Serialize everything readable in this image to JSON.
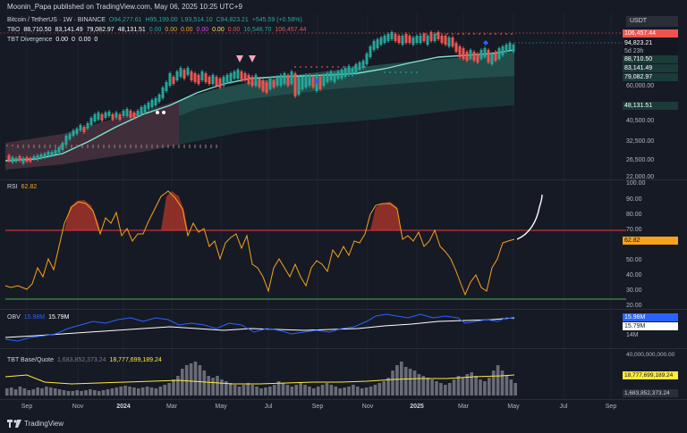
{
  "header": {
    "published_by": "Moonin_Papa published on TradingView.com, May 06, 2025 10:25 UTC+9"
  },
  "main": {
    "symbol": "Bitcoin / TetherUS · 1W · BINANCE",
    "ohlc": {
      "o": "O94,277.61",
      "h": "H95,199.00",
      "l": "L93,514.10",
      "c": "C94,823.21",
      "chg": "+545.59 (+0.58%)"
    },
    "tbo": {
      "label": "TBO",
      "values": [
        "88,710.50",
        "83,141.49",
        "79,082.97",
        "48,131.51",
        "0.00",
        "0.00",
        "0.00",
        "0.00",
        "0.00",
        "0.00",
        "16,548.70",
        "106,457.44"
      ]
    },
    "tbt_div": {
      "label": "TBT Divergence",
      "values": [
        "0.00",
        "0",
        "0.00",
        "0"
      ]
    },
    "currency": "USDT",
    "price_tags": [
      {
        "text": "106,457.44",
        "bg": "#ef5350",
        "fg": "#ffffff"
      },
      {
        "text": "94,823.21",
        "bg": "#131722",
        "fg": "#ffffff"
      },
      {
        "text": "5d 23h",
        "bg": "#131722",
        "fg": "#b2b5be"
      },
      {
        "text": "88,710.50",
        "bg": "#1b3b39",
        "fg": "#ffffff"
      },
      {
        "text": "83,141.49",
        "bg": "#1b3b39",
        "fg": "#ffffff"
      },
      {
        "text": "79,082.97",
        "bg": "#1b3b39",
        "fg": "#ffffff"
      },
      {
        "text": "48,131.51",
        "bg": "#1b3b39",
        "fg": "#ffffff"
      }
    ],
    "price_axis": [
      "60,000.00",
      "40,500.00",
      "32,500.00",
      "26,500.00",
      "22,000.00"
    ]
  },
  "rsi": {
    "label": "RSI",
    "value": "62.82",
    "axis": [
      "100.00",
      "90.00",
      "80.00",
      "70.00",
      "50.00",
      "40.00",
      "30.00",
      "20.00"
    ],
    "color": "#f7a21b",
    "overbought_color": "#f23645",
    "oversold_color": "#4caf50"
  },
  "obv": {
    "label": "OBV",
    "v1": "15.98M",
    "v2": "15.79M",
    "axis": [
      "14M"
    ]
  },
  "tbt_base_quote": {
    "label": "TBT Base/Quote",
    "v1": "1,683,852,373.24",
    "v2": "18,777,699,189.24",
    "axis": [
      "40,000,000,000.00"
    ]
  },
  "time_axis": [
    "Sep",
    "Nov",
    "2024",
    "Mar",
    "May",
    "Jul",
    "Sep",
    "Nov",
    "2025",
    "Mar",
    "May",
    "Jul",
    "Sep"
  ],
  "footer": {
    "brand": "TradingView"
  }
}
